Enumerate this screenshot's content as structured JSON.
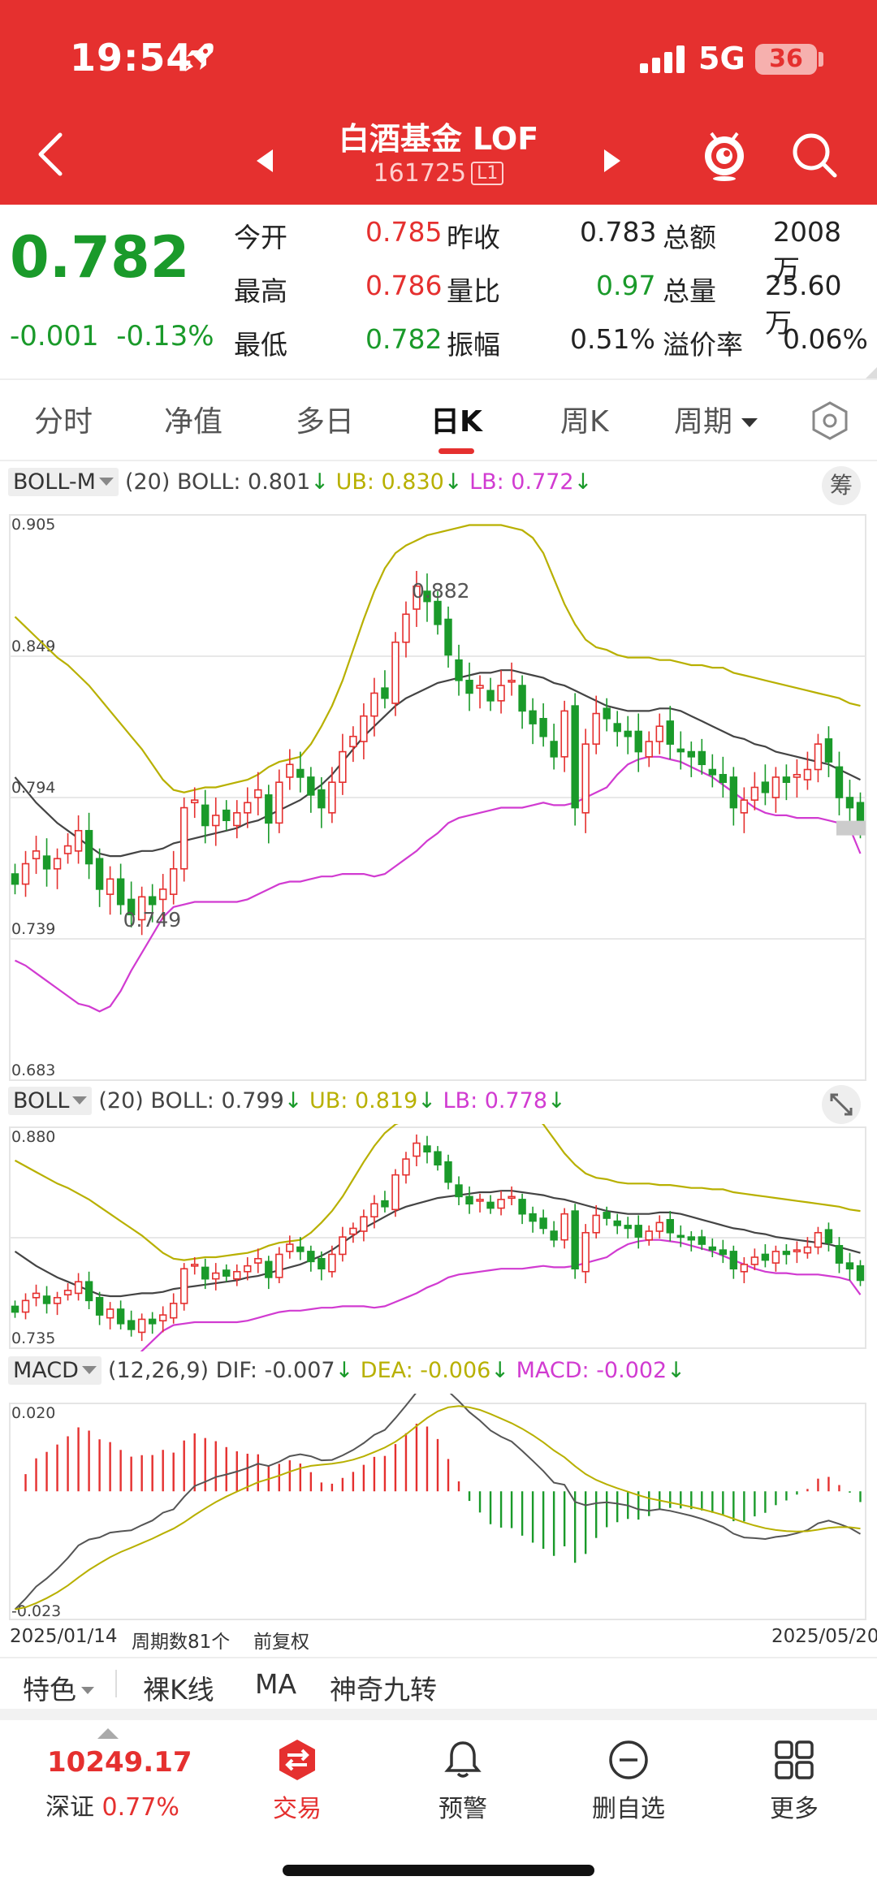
{
  "status": {
    "time": "19:54",
    "network": "5G",
    "battery": "36"
  },
  "header": {
    "title": "白酒基金 LOF",
    "code": "161725",
    "badge": "L1"
  },
  "quote": {
    "price": "0.782",
    "change": "-0.001",
    "change_pct": "-0.13%",
    "rows": [
      [
        {
          "label": "今开",
          "value": "0.785"
        },
        {
          "label": "昨收",
          "value": "0.783"
        },
        {
          "label": "总额",
          "value": "2008万"
        }
      ],
      [
        {
          "label": "最高",
          "value": "0.786"
        },
        {
          "label": "量比",
          "value": "0.97"
        },
        {
          "label": "总量",
          "value": "25.60万"
        }
      ],
      [
        {
          "label": "最低",
          "value": "0.782"
        },
        {
          "label": "振幅",
          "value": "0.51%"
        },
        {
          "label": "溢价率",
          "value": "0.06%"
        }
      ]
    ]
  },
  "tabs": [
    "分时",
    "净值",
    "多日",
    "日K",
    "周K",
    "周期"
  ],
  "active_tab": "日K",
  "chip_chou": "筹",
  "panel1": {
    "selector": "BOLL-M",
    "params": "(20)",
    "boll": "BOLL: 0.801",
    "ub": "UB: 0.830",
    "lb": "LB: 0.772",
    "y_labels": [
      "0.905",
      "0.849",
      "0.794",
      "0.739",
      "0.683"
    ],
    "high_label": "0.882",
    "low_label": "0.749"
  },
  "panel2": {
    "selector": "BOLL",
    "params": "(20)",
    "boll": "BOLL: 0.799",
    "ub": "UB: 0.819",
    "lb": "LB: 0.778",
    "y_labels": [
      "0.880",
      "0.735"
    ]
  },
  "panel3": {
    "selector": "MACD",
    "params": "(12,26,9)",
    "dif": "DIF: -0.007",
    "dea": "DEA: -0.006",
    "macd": "MACD: -0.002",
    "y_labels": [
      "0.020",
      "-0.023"
    ]
  },
  "footer": {
    "start_date": "2025/01/14",
    "period_count": "周期数81个",
    "adjust": "前复权",
    "end_date": "2025/05/20"
  },
  "features": [
    "特色",
    "裸K线",
    "MA",
    "神奇九转"
  ],
  "nav": {
    "index_value": "10249.17",
    "index_name": "深证",
    "index_pct": "0.77%",
    "items": [
      "交易",
      "预警",
      "删自选",
      "更多"
    ]
  },
  "colors": {
    "header": "#e5302f",
    "up": "#e5302f",
    "down": "#1a9a2a",
    "ub": "#b8b000",
    "lb": "#d13bd1"
  },
  "chart_data": {
    "type": "candlestick",
    "title": "",
    "start": "2025/01/14",
    "end": "2025/05/20",
    "periods": 81,
    "ylim": [
      0.683,
      0.905
    ],
    "close": [
      0.76,
      0.768,
      0.773,
      0.766,
      0.77,
      0.775,
      0.781,
      0.768,
      0.758,
      0.762,
      0.752,
      0.748,
      0.755,
      0.752,
      0.758,
      0.766,
      0.79,
      0.793,
      0.783,
      0.787,
      0.785,
      0.788,
      0.792,
      0.797,
      0.784,
      0.8,
      0.807,
      0.802,
      0.795,
      0.79,
      0.8,
      0.812,
      0.818,
      0.826,
      0.835,
      0.833,
      0.855,
      0.866,
      0.877,
      0.871,
      0.862,
      0.85,
      0.84,
      0.835,
      0.838,
      0.832,
      0.838,
      0.84,
      0.828,
      0.823,
      0.818,
      0.81,
      0.828,
      0.79,
      0.815,
      0.827,
      0.825,
      0.82,
      0.818,
      0.812,
      0.816,
      0.822,
      0.815,
      0.812,
      0.81,
      0.807,
      0.803,
      0.8,
      0.79,
      0.793,
      0.798,
      0.796,
      0.802,
      0.8,
      0.803,
      0.805,
      0.815,
      0.808,
      0.794,
      0.79,
      0.782
    ],
    "boll_mid": [
      0.802,
      0.797,
      0.792,
      0.788,
      0.784,
      0.781,
      0.778,
      0.775,
      0.772,
      0.771,
      0.771,
      0.772,
      0.773,
      0.773,
      0.774,
      0.776,
      0.777,
      0.778,
      0.779,
      0.78,
      0.781,
      0.782,
      0.784,
      0.785,
      0.787,
      0.789,
      0.791,
      0.793,
      0.796,
      0.799,
      0.803,
      0.808,
      0.813,
      0.818,
      0.822,
      0.826,
      0.83,
      0.833,
      0.835,
      0.837,
      0.839,
      0.84,
      0.841,
      0.842,
      0.843,
      0.843,
      0.844,
      0.844,
      0.843,
      0.842,
      0.841,
      0.839,
      0.838,
      0.836,
      0.834,
      0.832,
      0.83,
      0.829,
      0.828,
      0.828,
      0.828,
      0.829,
      0.829,
      0.828,
      0.826,
      0.824,
      0.822,
      0.82,
      0.818,
      0.817,
      0.815,
      0.814,
      0.812,
      0.811,
      0.81,
      0.809,
      0.808,
      0.807,
      0.805,
      0.803,
      0.801
    ],
    "boll_ub": [
      0.865,
      0.861,
      0.857,
      0.853,
      0.849,
      0.846,
      0.842,
      0.838,
      0.833,
      0.828,
      0.823,
      0.818,
      0.813,
      0.807,
      0.801,
      0.797,
      0.796,
      0.797,
      0.798,
      0.798,
      0.799,
      0.8,
      0.801,
      0.803,
      0.806,
      0.808,
      0.809,
      0.81,
      0.815,
      0.822,
      0.83,
      0.84,
      0.852,
      0.864,
      0.875,
      0.884,
      0.89,
      0.893,
      0.895,
      0.897,
      0.898,
      0.899,
      0.9,
      0.901,
      0.901,
      0.901,
      0.901,
      0.9,
      0.899,
      0.896,
      0.89,
      0.88,
      0.87,
      0.862,
      0.856,
      0.853,
      0.852,
      0.85,
      0.849,
      0.849,
      0.849,
      0.848,
      0.848,
      0.847,
      0.846,
      0.846,
      0.845,
      0.845,
      0.843,
      0.842,
      0.841,
      0.84,
      0.839,
      0.838,
      0.837,
      0.836,
      0.835,
      0.834,
      0.833,
      0.831,
      0.83
    ],
    "boll_lb": [
      0.73,
      0.728,
      0.725,
      0.722,
      0.719,
      0.716,
      0.713,
      0.712,
      0.71,
      0.712,
      0.718,
      0.726,
      0.733,
      0.74,
      0.747,
      0.751,
      0.752,
      0.753,
      0.753,
      0.753,
      0.753,
      0.753,
      0.754,
      0.756,
      0.758,
      0.76,
      0.761,
      0.761,
      0.762,
      0.763,
      0.763,
      0.764,
      0.764,
      0.764,
      0.763,
      0.764,
      0.767,
      0.77,
      0.773,
      0.777,
      0.78,
      0.784,
      0.786,
      0.787,
      0.788,
      0.789,
      0.79,
      0.79,
      0.79,
      0.791,
      0.792,
      0.791,
      0.791,
      0.792,
      0.794,
      0.796,
      0.798,
      0.803,
      0.807,
      0.809,
      0.81,
      0.81,
      0.809,
      0.808,
      0.806,
      0.804,
      0.802,
      0.799,
      0.796,
      0.793,
      0.79,
      0.788,
      0.787,
      0.787,
      0.786,
      0.786,
      0.786,
      0.785,
      0.784,
      0.782,
      0.772
    ],
    "macd_ylim": [
      -0.023,
      0.02
    ]
  }
}
